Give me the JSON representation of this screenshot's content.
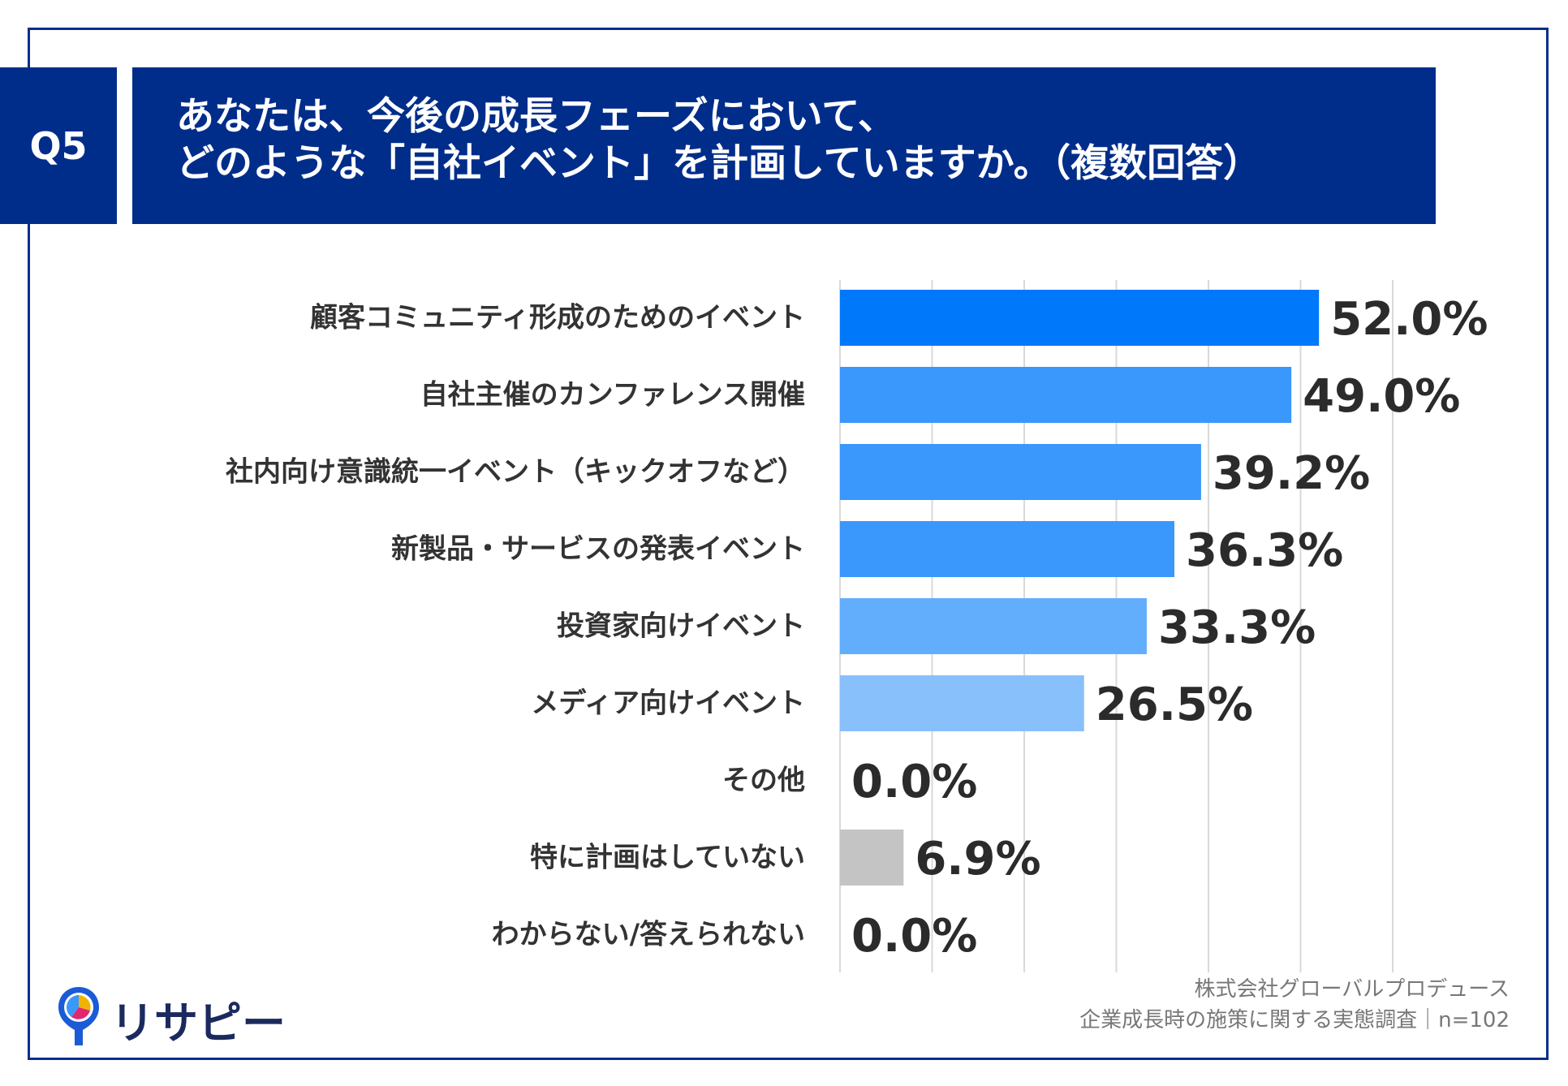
{
  "header": {
    "badge": "Q5",
    "title_line1": "あなたは、今後の成長フェーズにおいて、",
    "title_line2": "どのような「自社イベント」を計画していますか。（複数回答）"
  },
  "source": {
    "line1": "株式会社グローバルプロデュース",
    "line2": "企業成長時の施策に関する実態調査｜n=102"
  },
  "logo": {
    "text": "リサピー",
    "icon": "map-pin-pie-icon"
  },
  "chart_data": {
    "type": "bar",
    "orientation": "horizontal",
    "title": "",
    "xlabel": "",
    "ylabel": "",
    "xlim": [
      0,
      60
    ],
    "grid": true,
    "categories": [
      "顧客コミュニティ形成のためのイベント",
      "自社主催のカンファレンス開催",
      "社内向け意識統一イベント（キックオフなど）",
      "新製品・サービスの発表イベント",
      "投資家向けイベント",
      "メディア向けイベント",
      "その他",
      "特に計画はしていない",
      "わからない/答えられない"
    ],
    "values": [
      52.0,
      49.0,
      39.2,
      36.3,
      33.3,
      26.5,
      0.0,
      6.9,
      0.0
    ],
    "value_labels": [
      "52.0%",
      "49.0%",
      "39.2%",
      "36.3%",
      "33.3%",
      "26.5%",
      "0.0%",
      "6.9%",
      "0.0%"
    ],
    "colors": [
      "#0078fa",
      "#3a97fc",
      "#3a97fc",
      "#3a97fc",
      "#63aefc",
      "#88c0fc",
      "#88c0fc",
      "#c4c4c4",
      "#c4c4c4"
    ]
  }
}
